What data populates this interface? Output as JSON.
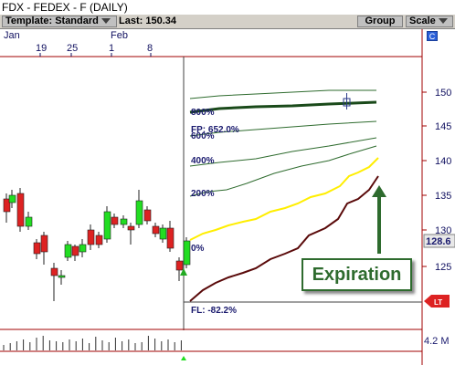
{
  "window": {
    "title": "FDX - FEDEX - F (DAILY)"
  },
  "toolbar": {
    "template_label": "Template: Standard",
    "last_label": "Last: 150.34",
    "group_label": "Group",
    "scale_label": "Scale"
  },
  "xaxis": {
    "month_jan": "Jan",
    "month_feb": "Feb",
    "days": [
      "19",
      "25",
      "1",
      "8"
    ]
  },
  "price_axis": {
    "ticks": [
      "150",
      "145",
      "140",
      "135",
      "130",
      "125"
    ],
    "current": "128.6",
    "lt_badge": "LT"
  },
  "volume_axis": {
    "label": "4.2 M"
  },
  "c_button": "C",
  "projection": {
    "fp_label": "FP: 652.0%",
    "fl_label": "FL: -82.2%",
    "levels": [
      "800%",
      "600%",
      "400%",
      "200%",
      "0%"
    ]
  },
  "callout": "Expiration",
  "colors": {
    "up": "#22dd22",
    "down": "#dd2222",
    "zero_curve": "#ffee00",
    "low_curve": "#5a0a0a",
    "level_curves": "#2e6b2e",
    "accent": "#2a5fd8"
  }
}
